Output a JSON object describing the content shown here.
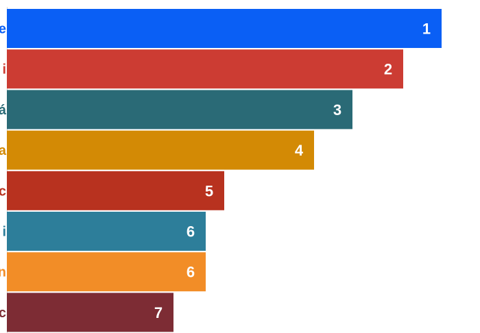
{
  "chart_data": {
    "type": "bar",
    "orientation": "horizontal",
    "categories": [
      "e",
      "i",
      "á",
      "a",
      "c",
      "i",
      "n",
      "c"
    ],
    "values": [
      644,
      588,
      514,
      458,
      327,
      300,
      300,
      253
    ],
    "data_labels": [
      "1",
      "2",
      "3",
      "4",
      "5",
      "6",
      "6",
      "7"
    ],
    "colors": [
      "#0a5ff5",
      "#cc3c33",
      "#2a6a76",
      "#d38a05",
      "#b8321f",
      "#2d7e9a",
      "#f28d27",
      "#7d2c34"
    ],
    "label_colors": [
      "#0a5ff5",
      "#cc3c33",
      "#2a6a76",
      "#d38a05",
      "#b8321f",
      "#2d7e9a",
      "#f28d27",
      "#7d2c34"
    ],
    "title": "",
    "xlabel": "",
    "ylabel": "",
    "grid": false,
    "legend": "none"
  }
}
